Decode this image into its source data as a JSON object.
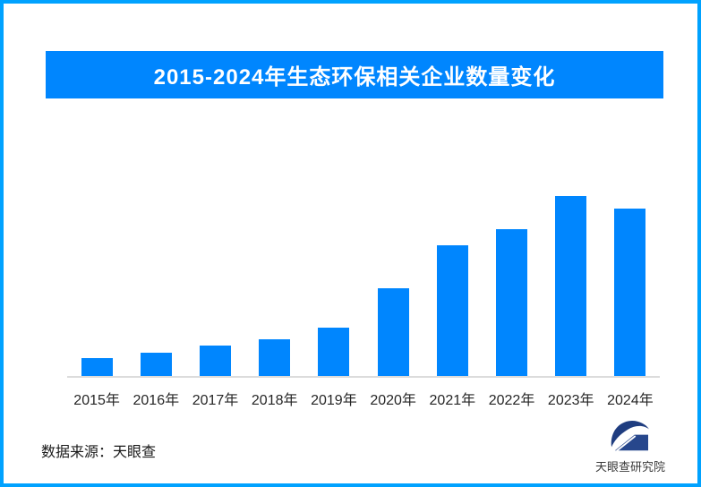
{
  "frame": {
    "border_color": "#00A2FF",
    "background": "#FFFFFF"
  },
  "title": {
    "text": "2015-2024年生态环保相关企业数量变化",
    "bg_color": "#0086FE",
    "text_color": "#FFFFFF"
  },
  "chart_data": {
    "type": "bar",
    "title": "2015-2024年生态环保相关企业数量变化",
    "categories": [
      "2015年",
      "2016年",
      "2017年",
      "2018年",
      "2019年",
      "2020年",
      "2021年",
      "2022年",
      "2023年",
      "2024年"
    ],
    "values": [
      10,
      12.9,
      16.9,
      20.4,
      26.9,
      48.8,
      72.6,
      81.6,
      100,
      93
    ],
    "values_unit": "percent-of-tallest-bar (chart displays no y-axis, gridlines or value labels)",
    "bar_color": "#0086FE",
    "axis_line_color": "#DCDCDC",
    "tick_label_color": "#262626",
    "xlabel": "",
    "ylabel": "",
    "grid": false,
    "legend": false
  },
  "footer": {
    "source_label": "数据来源：天眼查"
  },
  "logo": {
    "text": "天眼查研究院",
    "mark_color": "#1F3D80",
    "text_color": "#3A3A3A"
  }
}
